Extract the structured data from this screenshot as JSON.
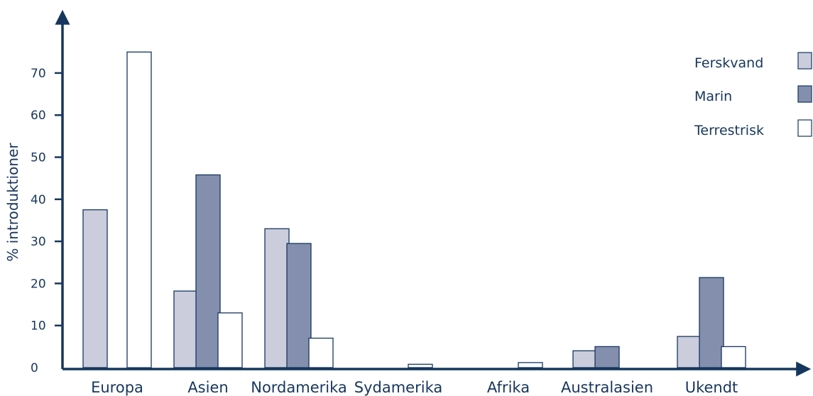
{
  "colors": {
    "axis": "#17365d",
    "bar_stroke": "#17365d",
    "text": "#17365d",
    "Ferskvand": "#cbcddd",
    "Marin": "#848fae",
    "Terrestrisk": "#ffffff"
  },
  "chart_data": {
    "type": "bar",
    "title": "",
    "xlabel": "",
    "ylabel": "% introduktioner",
    "ylim": [
      0,
      80
    ],
    "yticks": [
      0,
      10,
      20,
      30,
      40,
      50,
      60,
      70
    ],
    "ytick_labels": [
      "0",
      "10",
      "20",
      "30",
      "40",
      "50",
      "60",
      "70"
    ],
    "grid": false,
    "legend_position": "top-right",
    "categories": [
      "Europa",
      "Asien",
      "Nordamerika",
      "Sydamerika",
      "Afrika",
      "Australasien",
      "Ukendt"
    ],
    "series": [
      {
        "name": "Ferskvand",
        "values": [
          37.5,
          18.2,
          33,
          0,
          0,
          4,
          7.4
        ]
      },
      {
        "name": "Marin",
        "values": [
          0,
          45.8,
          29.5,
          0,
          0,
          5,
          21.4
        ]
      },
      {
        "name": "Terrestrisk",
        "values": [
          75,
          13,
          7,
          0.8,
          1.2,
          0,
          5
        ]
      }
    ]
  }
}
